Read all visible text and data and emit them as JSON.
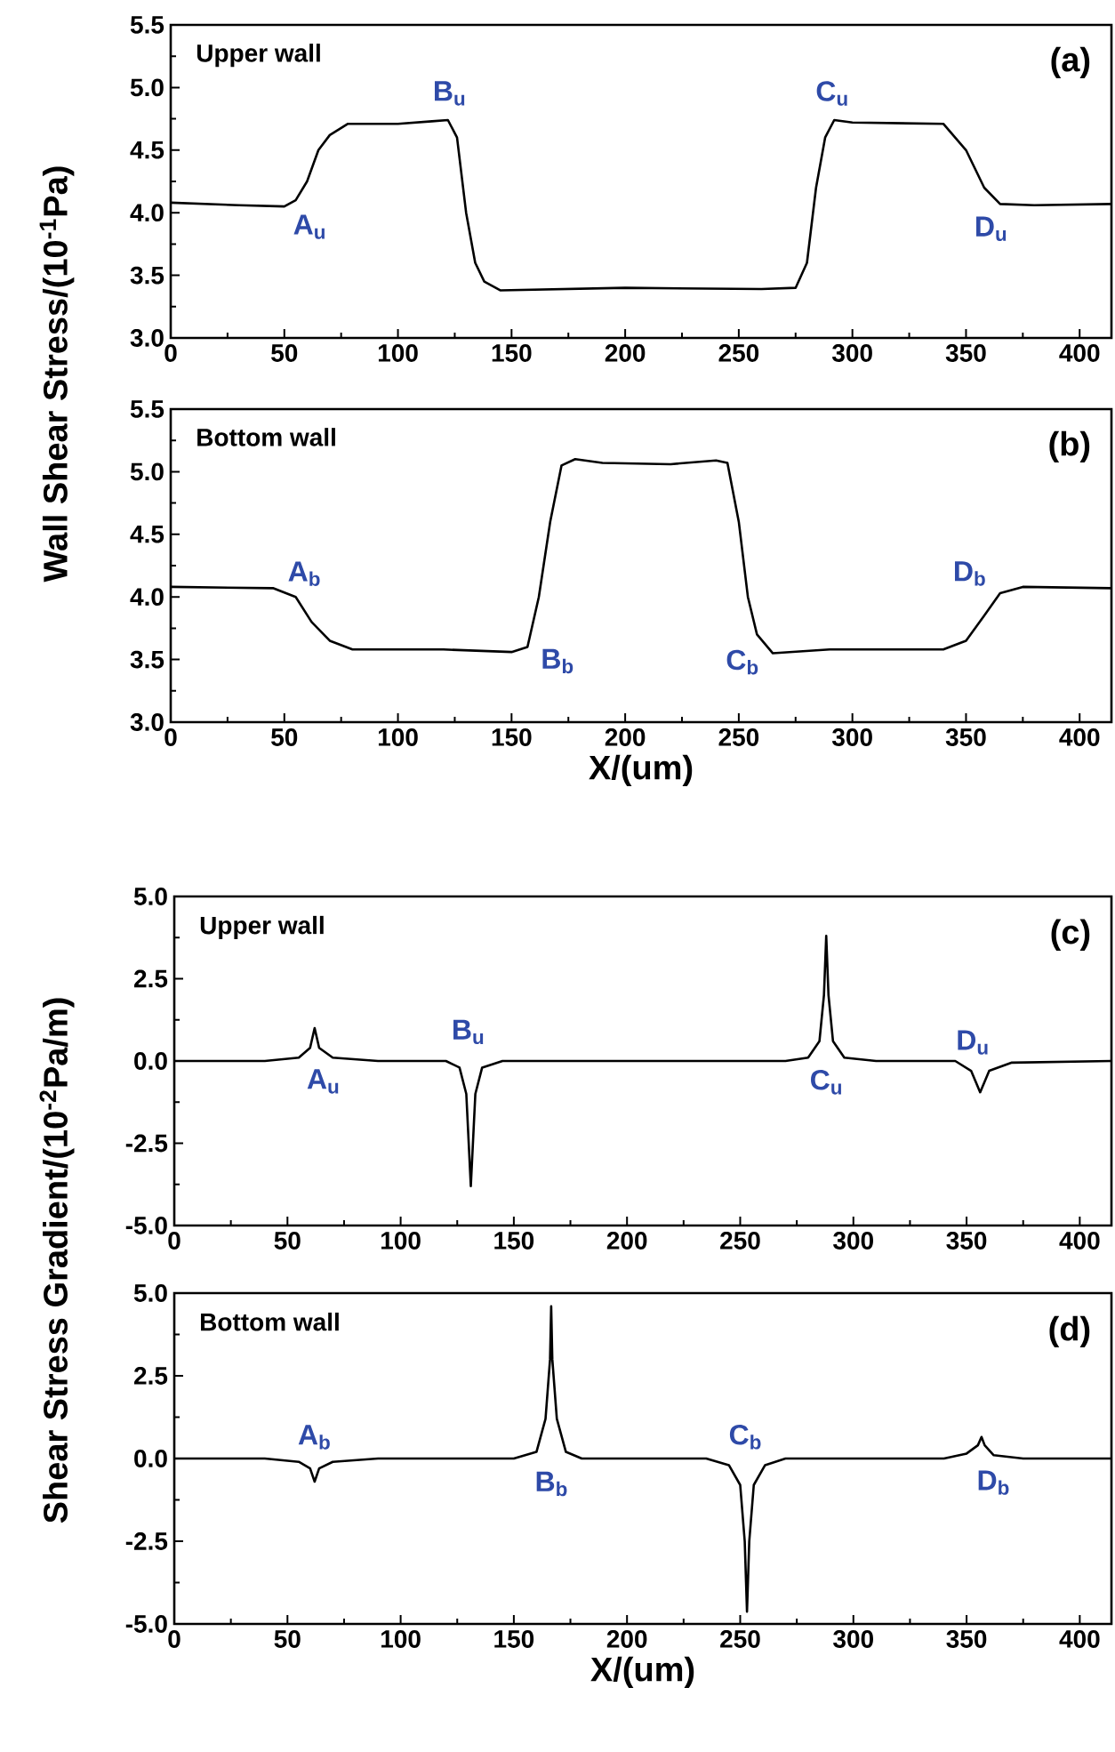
{
  "chart_data": [
    {
      "type": "line",
      "ylabel": "Wall Shear Stress/(10$^{-1}$Pa)",
      "xlim": [
        0,
        414
      ],
      "ylim": [
        3.0,
        5.5
      ],
      "xticks": [
        0,
        50,
        100,
        150,
        200,
        250,
        300,
        350,
        400
      ],
      "yticks": [
        {
          "value": 3.0,
          "label": "3.0"
        },
        {
          "value": 3.5,
          "label": "3.5"
        },
        {
          "value": 4.0,
          "label": "4.0"
        },
        {
          "value": 4.5,
          "label": "4.5"
        },
        {
          "value": 5.0,
          "label": "5.0"
        },
        {
          "value": 5.5,
          "label": "5.5"
        }
      ],
      "series": [
        {
          "color": "#000000",
          "x": [
            0,
            30,
            50,
            55,
            60,
            65,
            70,
            78,
            100,
            115,
            122,
            126,
            130,
            134,
            138,
            145,
            200,
            260,
            275,
            280,
            284,
            288,
            292,
            300,
            340,
            350,
            358,
            365,
            380,
            414
          ],
          "values": [
            4.08,
            4.06,
            4.05,
            4.1,
            4.25,
            4.5,
            4.62,
            4.71,
            4.71,
            4.73,
            4.74,
            4.6,
            4.0,
            3.6,
            3.45,
            3.38,
            3.4,
            3.39,
            3.4,
            3.6,
            4.2,
            4.6,
            4.74,
            4.72,
            4.71,
            4.5,
            4.2,
            4.07,
            4.06,
            4.07
          ]
        }
      ],
      "annotations": [
        "Upper wall",
        "(a)",
        {
          "text": "A$_{u}$",
          "x": 55,
          "y": 4.1
        },
        {
          "text": "B$_{u}$",
          "x": 122,
          "y": 4.74
        },
        {
          "text": "C$_{u}$",
          "x": 292,
          "y": 4.74
        },
        {
          "text": "D$_{u}$",
          "x": 365,
          "y": 4.07
        }
      ]
    },
    {
      "type": "line",
      "xlabel": "X/(um)",
      "xlim": [
        0,
        414
      ],
      "ylim": [
        3.0,
        5.5
      ],
      "xticks": [
        0,
        50,
        100,
        150,
        200,
        250,
        300,
        350,
        400
      ],
      "yticks": [
        {
          "value": 3.0,
          "label": "3.0"
        },
        {
          "value": 3.5,
          "label": "3.5"
        },
        {
          "value": 4.0,
          "label": "4.0"
        },
        {
          "value": 4.5,
          "label": "4.5"
        },
        {
          "value": 5.0,
          "label": "5.0"
        },
        {
          "value": 5.5,
          "label": "5.5"
        }
      ],
      "series": [
        {
          "color": "#000000",
          "x": [
            0,
            45,
            55,
            62,
            70,
            80,
            120,
            150,
            157,
            162,
            167,
            172,
            178,
            190,
            220,
            240,
            245,
            250,
            254,
            258,
            265,
            290,
            340,
            350,
            358,
            365,
            375,
            414
          ],
          "values": [
            4.08,
            4.07,
            4.0,
            3.8,
            3.65,
            3.58,
            3.58,
            3.56,
            3.6,
            4.0,
            4.6,
            5.05,
            5.1,
            5.07,
            5.06,
            5.09,
            5.07,
            4.6,
            4.0,
            3.7,
            3.55,
            3.58,
            3.58,
            3.65,
            3.85,
            4.03,
            4.08,
            4.07
          ]
        }
      ],
      "annotations": [
        "Bottom wall",
        "(b)",
        {
          "text": "A$_{b}$",
          "x": 55,
          "y": 4.0
        },
        {
          "text": "B$_{b}$",
          "x": 157,
          "y": 3.6
        },
        {
          "text": "C$_{b}$",
          "x": 265,
          "y": 3.55
        },
        {
          "text": "D$_{b}$",
          "x": 365,
          "y": 4.03
        }
      ]
    },
    {
      "type": "line",
      "ylabel": "Shear Stress Gradient/(10$^{-2}$Pa/m)",
      "xlim": [
        0,
        414
      ],
      "ylim": [
        -5.0,
        5.0
      ],
      "xticks": [
        0,
        50,
        100,
        150,
        200,
        250,
        300,
        350,
        400
      ],
      "yticks": [
        {
          "value": -5.0,
          "label": "-5.0"
        },
        {
          "value": -2.5,
          "label": "-2.5"
        },
        {
          "value": 0.0,
          "label": "0.0"
        },
        {
          "value": 2.5,
          "label": "2.5"
        },
        {
          "value": 5.0,
          "label": "5.0"
        }
      ],
      "series": [
        {
          "color": "#000000",
          "x": [
            0,
            40,
            55,
            60,
            62,
            64,
            70,
            90,
            120,
            126,
            129,
            131,
            133,
            136,
            145,
            270,
            280,
            285,
            287,
            288,
            289,
            291,
            296,
            310,
            345,
            352,
            356,
            360,
            370,
            414
          ],
          "values": [
            0,
            0,
            0.1,
            0.4,
            1.0,
            0.4,
            0.1,
            0,
            0,
            -0.2,
            -1.0,
            -3.8,
            -1.0,
            -0.2,
            0,
            0,
            0.1,
            0.6,
            2.0,
            3.8,
            2.0,
            0.6,
            0.1,
            0,
            0,
            -0.3,
            -0.95,
            -0.3,
            -0.05,
            0
          ]
        }
      ],
      "annotations": [
        "Upper wall",
        "(c)",
        {
          "text": "A$_{u}$",
          "x": 62,
          "y": 1.0
        },
        {
          "text": "B$_{u}$",
          "x": 126,
          "y": -0.2
        },
        {
          "text": "C$_{u}$",
          "x": 285,
          "y": 0.6
        },
        {
          "text": "D$_{u}$",
          "x": 352,
          "y": -0.3
        }
      ]
    },
    {
      "type": "line",
      "xlabel": "X/(um)",
      "xlim": [
        0,
        414
      ],
      "ylim": [
        -5.0,
        5.0
      ],
      "xticks": [
        0,
        50,
        100,
        150,
        200,
        250,
        300,
        350,
        400
      ],
      "yticks": [
        {
          "value": -5.0,
          "label": "-5.0"
        },
        {
          "value": -2.5,
          "label": "-2.5"
        },
        {
          "value": 0.0,
          "label": "0.0"
        },
        {
          "value": 2.5,
          "label": "2.5"
        },
        {
          "value": 5.0,
          "label": "5.0"
        }
      ],
      "series": [
        {
          "color": "#000000",
          "x": [
            0,
            40,
            55,
            60,
            62,
            64,
            70,
            90,
            150,
            160,
            164,
            166,
            166.5,
            167,
            169,
            173,
            180,
            235,
            245,
            250,
            252,
            253,
            254,
            256,
            261,
            270,
            340,
            350,
            355,
            356.6,
            358,
            362,
            375,
            414
          ],
          "values": [
            0,
            0,
            -0.1,
            -0.3,
            -0.7,
            -0.3,
            -0.1,
            0,
            0,
            0.2,
            1.2,
            3.0,
            4.6,
            3.0,
            1.2,
            0.2,
            0,
            0,
            -0.2,
            -0.8,
            -2.5,
            -4.63,
            -2.5,
            -0.8,
            -0.2,
            0,
            0,
            0.15,
            0.4,
            0.65,
            0.4,
            0.1,
            0,
            0
          ]
        }
      ],
      "annotations": [
        "Bottom wall",
        "(d)",
        {
          "text": "A$_{b}$",
          "x": 62,
          "y": -0.7
        },
        {
          "text": "B$_{b}$",
          "x": 173,
          "y": 0.2
        },
        {
          "text": "C$_{b}$",
          "x": 250,
          "y": -0.8
        },
        {
          "text": "D$_{b}$",
          "x": 358,
          "y": 0.4
        }
      ]
    }
  ]
}
